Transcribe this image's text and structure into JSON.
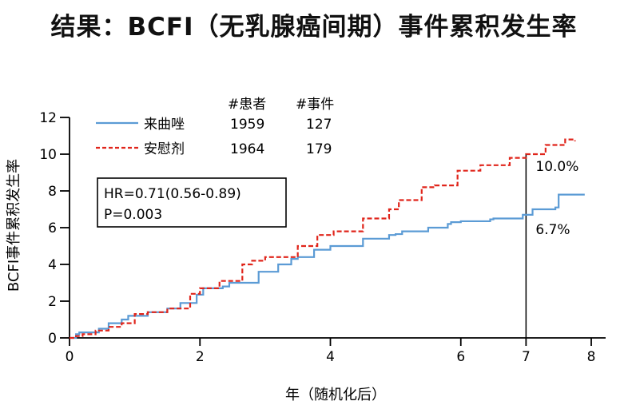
{
  "title": "结果：BCFI（无乳腺癌间期）事件累积发生率",
  "chart_data": {
    "type": "line",
    "title": "结果：BCFI（无乳腺癌间期）事件累积发生率",
    "xlabel": "年（随机化后）",
    "ylabel": "BCFI事件累积发生率",
    "xlim": [
      0,
      8
    ],
    "ylim": [
      0,
      12
    ],
    "x_ticks": [
      0,
      2,
      4,
      6,
      7,
      8
    ],
    "y_ticks": [
      0,
      2,
      4,
      6,
      8,
      10,
      12
    ],
    "grid": false,
    "legend": {
      "position": "top-left",
      "header_patients": "#患者",
      "header_events": "#事件",
      "entries": [
        {
          "name": "来曲唑",
          "patients": "1959",
          "events": "127"
        },
        {
          "name": "安慰剂",
          "patients": "1964",
          "events": "179"
        }
      ]
    },
    "stats_box": {
      "hr": "HR=0.71(0.56-0.89)",
      "p": "P=0.003"
    },
    "reference_line": {
      "x": 7
    },
    "annotations": [
      {
        "text": "10.0%",
        "x": 7,
        "y": 10.0
      },
      {
        "text": "6.7%",
        "x": 7,
        "y": 6.7
      }
    ],
    "colors": {
      "letrozole": "#5b9bd5",
      "placebo": "#e0251b",
      "axis": "#000000"
    },
    "series": [
      {
        "name": "来曲唑",
        "style": "solid",
        "x": [
          0,
          0.1,
          0.15,
          0.2,
          0.45,
          0.6,
          0.8,
          0.9,
          1.2,
          1.5,
          1.7,
          1.95,
          2.05,
          2.35,
          2.45,
          2.9,
          3.2,
          3.3,
          3.4,
          3.5,
          3.75,
          4.0,
          4.5,
          4.9,
          5.0,
          5.1,
          5.5,
          5.8,
          5.85,
          6.0,
          6.45,
          6.5,
          6.8,
          6.95,
          7.0,
          7.1,
          7.45,
          7.5,
          7.9
        ],
        "y": [
          0,
          0.2,
          0.3,
          0.3,
          0.5,
          0.8,
          1.0,
          1.2,
          1.4,
          1.6,
          1.9,
          2.35,
          2.7,
          2.8,
          3.0,
          3.6,
          4.0,
          4.0,
          4.3,
          4.4,
          4.8,
          5.0,
          5.4,
          5.6,
          5.65,
          5.8,
          6.0,
          6.2,
          6.3,
          6.35,
          6.45,
          6.5,
          6.5,
          6.7,
          6.7,
          7.0,
          7.1,
          7.8,
          7.8
        ]
      },
      {
        "name": "安慰剂",
        "style": "dashed",
        "x": [
          0,
          0.1,
          0.2,
          0.4,
          0.6,
          0.8,
          1.0,
          1.2,
          1.5,
          1.85,
          2.0,
          2.3,
          2.65,
          2.8,
          3.0,
          3.5,
          3.8,
          4.05,
          4.5,
          4.9,
          5.05,
          5.4,
          5.6,
          5.95,
          6.3,
          6.75,
          7.0,
          7.05,
          7.3,
          7.5,
          7.6,
          7.65,
          7.75
        ],
        "y": [
          0,
          0.1,
          0.2,
          0.4,
          0.6,
          0.8,
          1.3,
          1.4,
          1.6,
          2.4,
          2.7,
          3.1,
          4.0,
          4.2,
          4.4,
          5.0,
          5.6,
          5.8,
          6.5,
          7.0,
          7.5,
          8.2,
          8.3,
          9.1,
          9.4,
          9.8,
          10.0,
          10.0,
          10.5,
          10.5,
          10.8,
          10.8,
          10.7
        ]
      }
    ]
  }
}
